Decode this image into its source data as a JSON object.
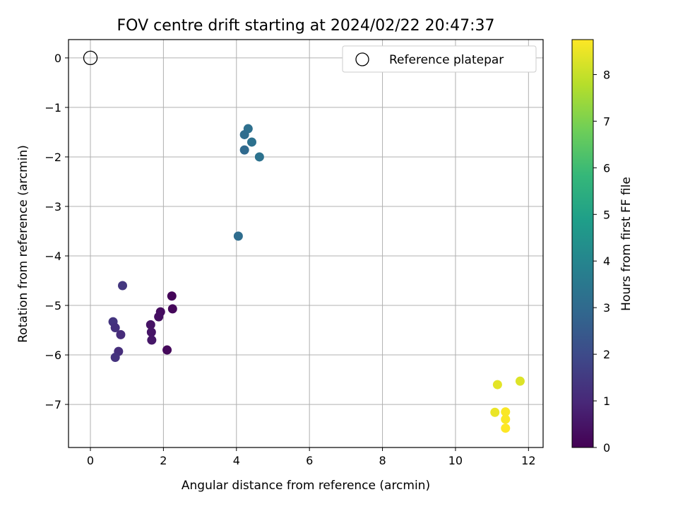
{
  "chart_data": {
    "type": "scatter",
    "title": "FOV centre drift starting at 2024/02/22 20:47:37",
    "xlabel": "Angular distance from reference (arcmin)",
    "ylabel": "Rotation from reference (arcmin)",
    "xlim": [
      -0.6,
      12.4
    ],
    "ylim": [
      -7.87,
      0.37
    ],
    "x_ticks": [
      0,
      2,
      4,
      6,
      8,
      10,
      12
    ],
    "y_ticks": [
      0,
      -1,
      -2,
      -3,
      -4,
      -5,
      -6,
      -7
    ],
    "grid": true,
    "legend": {
      "placement": "top-right",
      "entries": [
        {
          "label": "Reference platepar",
          "marker": "open-circle"
        }
      ]
    },
    "reference_point": {
      "x": 0,
      "y": 0
    },
    "colorbar": {
      "label": "Hours from first FF file",
      "min": 0,
      "max": 8.75,
      "ticks": [
        0,
        1,
        2,
        3,
        4,
        5,
        6,
        7,
        8
      ],
      "colormap": "viridis",
      "stops": [
        "#440154",
        "#482878",
        "#3e4989",
        "#31688e",
        "#26828e",
        "#1f9e89",
        "#35b779",
        "#6ece58",
        "#b5de2b",
        "#fde725"
      ]
    },
    "points": [
      {
        "x": 2.23,
        "y": -4.81,
        "hours": 0.1
      },
      {
        "x": 2.25,
        "y": -5.07,
        "hours": 0.15
      },
      {
        "x": 2.1,
        "y": -5.9,
        "hours": 0.2
      },
      {
        "x": 1.92,
        "y": -5.13,
        "hours": 0.3
      },
      {
        "x": 1.87,
        "y": -5.23,
        "hours": 0.35
      },
      {
        "x": 1.65,
        "y": -5.39,
        "hours": 0.45
      },
      {
        "x": 1.67,
        "y": -5.54,
        "hours": 0.5
      },
      {
        "x": 1.68,
        "y": -5.7,
        "hours": 0.55
      },
      {
        "x": 0.88,
        "y": -4.6,
        "hours": 1.4
      },
      {
        "x": 0.62,
        "y": -5.33,
        "hours": 1.35
      },
      {
        "x": 0.68,
        "y": -5.45,
        "hours": 1.25
      },
      {
        "x": 0.83,
        "y": -5.59,
        "hours": 1.1
      },
      {
        "x": 0.77,
        "y": -5.93,
        "hours": 1.15
      },
      {
        "x": 0.68,
        "y": -6.05,
        "hours": 1.3
      },
      {
        "x": 4.32,
        "y": -1.43,
        "hours": 3.2
      },
      {
        "x": 4.22,
        "y": -1.55,
        "hours": 3.1
      },
      {
        "x": 4.42,
        "y": -1.7,
        "hours": 3.25
      },
      {
        "x": 4.22,
        "y": -1.86,
        "hours": 3.0
      },
      {
        "x": 4.63,
        "y": -2.0,
        "hours": 3.3
      },
      {
        "x": 4.05,
        "y": -3.6,
        "hours": 3.1
      },
      {
        "x": 11.77,
        "y": -6.53,
        "hours": 8.3
      },
      {
        "x": 11.15,
        "y": -6.6,
        "hours": 8.4
      },
      {
        "x": 11.08,
        "y": -7.16,
        "hours": 8.5
      },
      {
        "x": 11.37,
        "y": -7.15,
        "hours": 8.7
      },
      {
        "x": 11.37,
        "y": -7.3,
        "hours": 8.7
      },
      {
        "x": 11.37,
        "y": -7.48,
        "hours": 8.75
      }
    ]
  }
}
